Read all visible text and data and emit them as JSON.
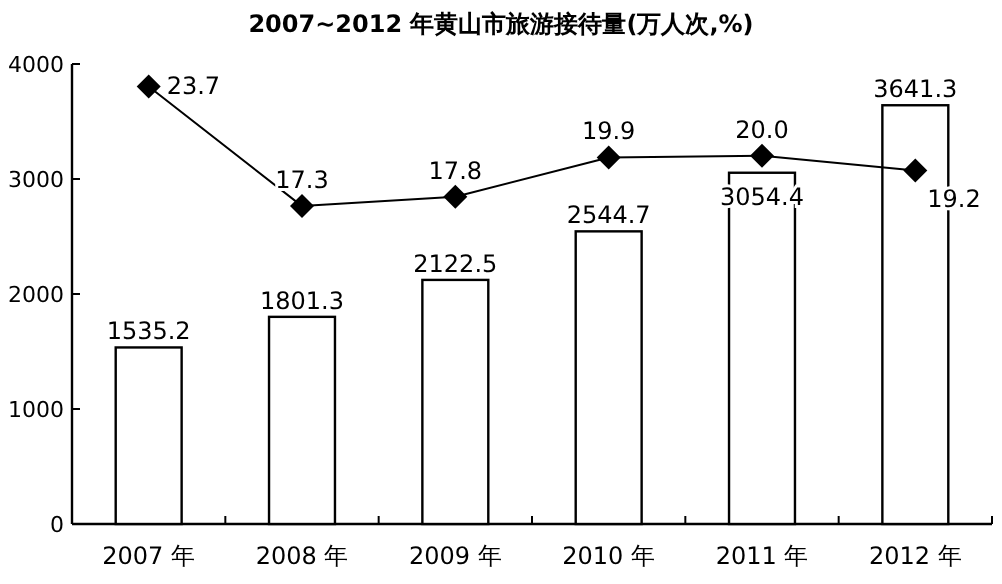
{
  "chart_data": {
    "type": "bar",
    "title": "2007~2012 年黄山市旅游接待量(万人次,%)",
    "categories": [
      "2007 年",
      "2008 年",
      "2009 年",
      "2010 年",
      "2011 年",
      "2012 年"
    ],
    "ylim": [
      0,
      4000
    ],
    "yticks": [
      0,
      1000,
      2000,
      3000,
      4000
    ],
    "y2lim": [
      0.3,
      24.9
    ],
    "data_labels": true,
    "series": [
      {
        "color": "#ffffff",
        "values": [
          1535.2,
          1801.3,
          2122.5,
          2544.7,
          3054.4,
          3641.3
        ]
      },
      {
        "type": "line",
        "axis": "y2",
        "color": "#000000",
        "marker": "diamond",
        "values": [
          23.7,
          17.3,
          17.8,
          19.9,
          20.0,
          19.2
        ],
        "value_labels": [
          "23.7",
          "17.3",
          "17.8",
          "19.9",
          "20.0",
          "19.2"
        ]
      }
    ]
  }
}
